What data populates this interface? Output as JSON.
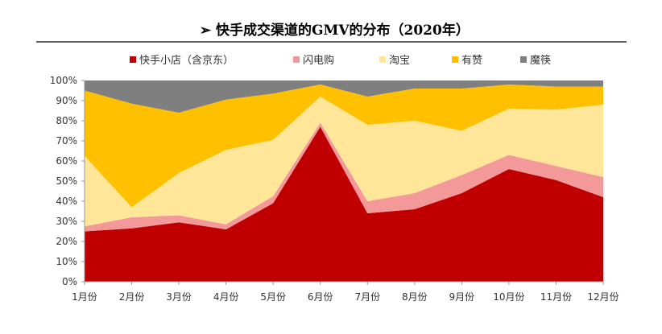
{
  "chart_data": {
    "type": "area",
    "stacked": true,
    "title_marker": "➢",
    "title": "快手成交渠道的GMV的分布（2020年）",
    "xlabel": "",
    "ylabel": "",
    "categories": [
      "1月份",
      "2月份",
      "3月份",
      "4月份",
      "5月份",
      "6月份",
      "7月份",
      "8月份",
      "9月份",
      "10月份",
      "11月份",
      "12月份"
    ],
    "ylim": [
      0,
      100
    ],
    "yticks": [
      "0%",
      "10%",
      "20%",
      "30%",
      "40%",
      "50%",
      "60%",
      "70%",
      "80%",
      "90%",
      "100%"
    ],
    "legend_position": "top",
    "grid": false,
    "series": [
      {
        "name": "快手小店（含京东）",
        "color": "#C00000",
        "values": [
          25,
          26.5,
          29.5,
          26,
          39,
          77,
          34,
          36,
          44,
          56,
          50.5,
          42
        ]
      },
      {
        "name": "闪电购",
        "color": "#F4999A",
        "values": [
          2.5,
          5.5,
          3.5,
          2.5,
          3.5,
          2,
          6,
          8,
          9,
          7,
          7,
          10
        ]
      },
      {
        "name": "淘宝",
        "color": "#FFE699",
        "values": [
          35,
          5,
          21,
          37,
          28,
          13,
          38,
          36,
          22,
          23,
          28,
          36
        ]
      },
      {
        "name": "有赞",
        "color": "#FFC000",
        "values": [
          32.5,
          51.5,
          30,
          25,
          23,
          6,
          14,
          16,
          21,
          12,
          11.5,
          9
        ]
      },
      {
        "name": "魔筷",
        "color": "#7F7F7F",
        "values": [
          5,
          11.5,
          16,
          9.5,
          6.5,
          2,
          8,
          4,
          4,
          2,
          3,
          3
        ]
      }
    ]
  }
}
